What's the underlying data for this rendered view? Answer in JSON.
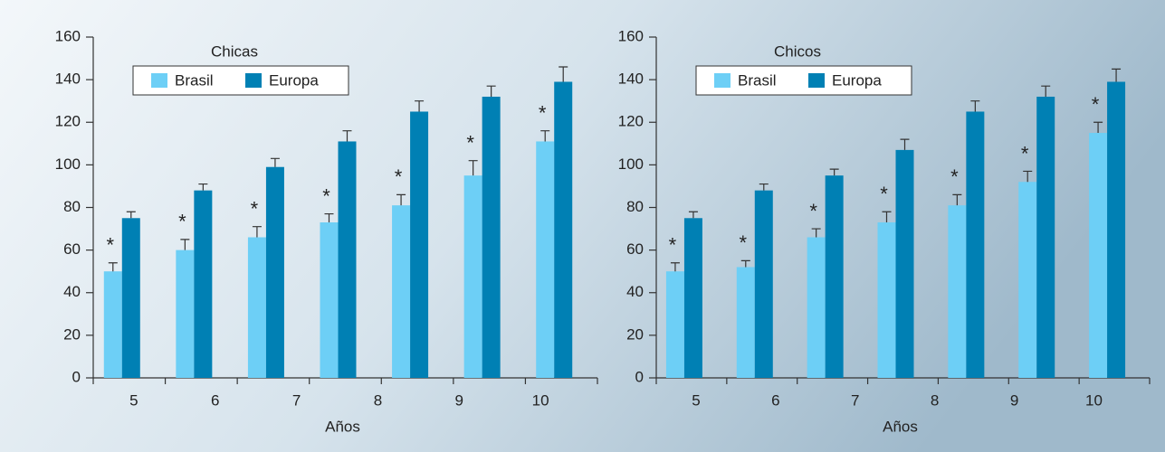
{
  "chart_data": [
    {
      "type": "bar",
      "title": "Chicas",
      "xlabel": "Años",
      "categories": [
        null,
        null,
        null,
        null,
        null,
        null,
        null
      ],
      "annotations": [
        "*",
        "*",
        "*",
        "*",
        "*",
        "*",
        "*"
      ],
      "series": [
        {
          "name": "Brasil",
          "color": "#6dcff6",
          "values": [
            50,
            60,
            66,
            73,
            81,
            95,
            111
          ],
          "errors": [
            4,
            5,
            5,
            4,
            5,
            7,
            5
          ]
        },
        {
          "name": "Europa",
          "color": "#0080b4",
          "values": [
            75,
            88,
            99,
            111,
            125,
            132,
            139
          ],
          "errors": [
            3,
            3,
            4,
            5,
            5,
            5,
            7
          ]
        }
      ],
      "ylim": [
        0,
        160
      ],
      "yticks": [
        0,
        20,
        40,
        60,
        80,
        100,
        120,
        140,
        160
      ],
      "xlim": [
        4.5,
        10.7
      ],
      "xticks": [
        5,
        6,
        7,
        8,
        9,
        10
      ]
    },
    {
      "type": "bar",
      "title": "Chicos",
      "xlabel": "Años",
      "categories": [
        null,
        null,
        null,
        null,
        null,
        null,
        null
      ],
      "annotations": [
        "*",
        "*",
        "*",
        "*",
        "*",
        "*",
        "*"
      ],
      "series": [
        {
          "name": "Brasil",
          "color": "#6dcff6",
          "values": [
            50,
            52,
            66,
            73,
            81,
            92,
            115
          ],
          "errors": [
            4,
            3,
            4,
            5,
            5,
            5,
            5
          ]
        },
        {
          "name": "Europa",
          "color": "#0080b4",
          "values": [
            75,
            88,
            95,
            107,
            125,
            132,
            139
          ],
          "errors": [
            3,
            3,
            3,
            5,
            5,
            5,
            6
          ]
        }
      ],
      "ylim": [
        0,
        160
      ],
      "yticks": [
        0,
        20,
        40,
        60,
        80,
        100,
        120,
        140,
        160
      ],
      "xlim": [
        4.5,
        10.7
      ],
      "xticks": [
        5,
        6,
        7,
        8,
        9,
        10
      ]
    }
  ]
}
